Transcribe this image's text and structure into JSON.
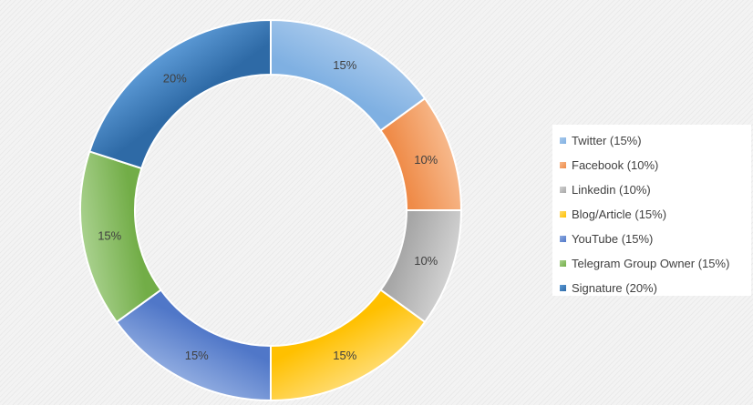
{
  "chart_data": {
    "type": "pie",
    "variant": "doughnut",
    "slices": [
      {
        "name": "Twitter",
        "value": 15,
        "label": "15%",
        "legend": "Twitter (15%)",
        "color_light": "#a8c9ec",
        "color_dark": "#7fb0e2"
      },
      {
        "name": "Facebook",
        "value": 10,
        "label": "10%",
        "legend": "Facebook (10%)",
        "color_light": "#f7b98c",
        "color_dark": "#ef8b48"
      },
      {
        "name": "Linkedin",
        "value": 10,
        "label": "10%",
        "legend": "Linkedin (10%)",
        "color_light": "#d2d2d2",
        "color_dark": "#a6a6a6"
      },
      {
        "name": "Blog/Article",
        "value": 15,
        "label": "15%",
        "legend": "Blog/Article (15%)",
        "color_light": "#ffdb6e",
        "color_dark": "#ffc000"
      },
      {
        "name": "YouTube",
        "value": 15,
        "label": "15%",
        "legend": "YouTube (15%)",
        "color_light": "#8fabe0",
        "color_dark": "#5077c8"
      },
      {
        "name": "Telegram Group Owner",
        "value": 15,
        "label": "15%",
        "legend": "Telegram Group Owner (15%)",
        "color_light": "#a9d18e",
        "color_dark": "#72ad47"
      },
      {
        "name": "Signature",
        "value": 20,
        "label": "20%",
        "legend": "Signature (20%)",
        "color_light": "#5c9ad6",
        "color_dark": "#2e6aa6"
      }
    ],
    "legend_position": "right",
    "start_angle": "top",
    "direction": "clockwise"
  }
}
